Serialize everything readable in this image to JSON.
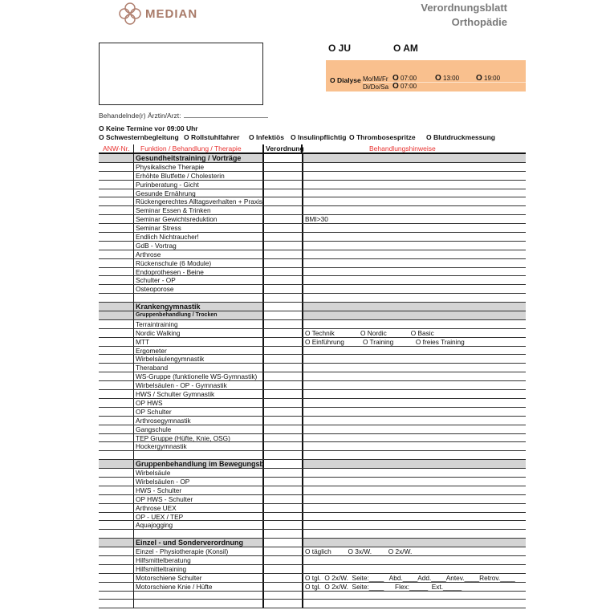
{
  "header": {
    "logo_text": "MEDIAN",
    "title_line1": "Verordnungsblatt",
    "title_line2": "Orthopädie"
  },
  "ward": {
    "ju": "O  JU",
    "am": "O  AM"
  },
  "dialyse": {
    "label": "O Dialyse",
    "days1": "Mo/Mi/Fr",
    "days2": "Di/Do/Sa",
    "t1": "07:00",
    "t2": "13:00",
    "t3": "19:00",
    "t4": "07:00",
    "circle": "O"
  },
  "doctor_label": "Behandelnde(r) Ärztin/Arzt:",
  "no_early": "O Keine Termine vor 09:00 Uhr",
  "flags": [
    "O Schwesternbegleitung",
    "O Rollstuhlfahrer",
    "O Infektiös",
    "O Insulinpflichtig",
    "O Thrombosespritze",
    "O Blutdruckmessung"
  ],
  "columns": {
    "anw": "ANW-Nr.",
    "funktion": "Funktion / Behandlung / Therapie",
    "verordnung": "Verordnung",
    "hinweise": "Behandlungshinweise",
    "header_color": "#e8312f"
  },
  "rows": [
    {
      "t": "sec",
      "label": "Gesundheitstraining / Vorträge"
    },
    {
      "t": "item",
      "label": "Physikalische Therapie"
    },
    {
      "t": "item",
      "label": "Erhöhte Blutfette / Cholesterin"
    },
    {
      "t": "item",
      "label": "Purinberatung - Gicht"
    },
    {
      "t": "item",
      "label": "Gesunde Ernährung"
    },
    {
      "t": "item",
      "label": "Rückengerechtes Alltagsverhalten + Praxis"
    },
    {
      "t": "item",
      "label": "Seminar Essen & Trinken"
    },
    {
      "t": "item",
      "label": "Seminar Gewichtsreduktion",
      "note": "BMI>30"
    },
    {
      "t": "item",
      "label": "Seminar Stress"
    },
    {
      "t": "item",
      "label": "Endlich Nichtraucher!"
    },
    {
      "t": "item",
      "label": "GdB - Vortrag"
    },
    {
      "t": "item",
      "label": "Arthrose"
    },
    {
      "t": "item",
      "label": "Rückenschule (6 Module)"
    },
    {
      "t": "item",
      "label": "Endoprothesen - Beine"
    },
    {
      "t": "item",
      "label": "Schulter - OP"
    },
    {
      "t": "item",
      "label": "Osteoporose"
    },
    {
      "t": "blank",
      "label": ""
    },
    {
      "t": "sec",
      "label": "Krankengymnastik"
    },
    {
      "t": "sub",
      "label": "Gruppenbehandlung / Trocken"
    },
    {
      "t": "item",
      "label": "Terraintraining"
    },
    {
      "t": "item",
      "label": "Nordic Walking",
      "note": "O Technik              O Nordic             O Basic"
    },
    {
      "t": "item",
      "label": "MTT",
      "note": "O Einführung          O Training            O freies Training"
    },
    {
      "t": "item",
      "label": "Ergometer"
    },
    {
      "t": "item",
      "label": "Wirbelsäulengymnastik"
    },
    {
      "t": "item",
      "label": "Theraband"
    },
    {
      "t": "item",
      "label": "WS-Gruppe (funktionelle WS-Gymnastik)"
    },
    {
      "t": "item",
      "label": "Wirbelsäulen - OP - Gymnastik"
    },
    {
      "t": "item",
      "label": "HWS / Schulter Gymnastik"
    },
    {
      "t": "item",
      "label": "OP HWS"
    },
    {
      "t": "item",
      "label": "OP Schulter"
    },
    {
      "t": "item",
      "label": "Arthrosegymnastik"
    },
    {
      "t": "item",
      "label": "Gangschule"
    },
    {
      "t": "item",
      "label": "TEP Gruppe (Hüfte, Knie, OSG)"
    },
    {
      "t": "item",
      "label": "Hockergymnastik"
    },
    {
      "t": "blank",
      "label": ""
    },
    {
      "t": "sec",
      "label": "Gruppenbehandlung im Bewegungsbad"
    },
    {
      "t": "item",
      "label": "Wirbelsäule"
    },
    {
      "t": "item",
      "label": "Wirbelsäulen - OP"
    },
    {
      "t": "item",
      "label": "HWS - Schulter"
    },
    {
      "t": "item",
      "label": "OP HWS - Schulter"
    },
    {
      "t": "item",
      "label": "Arthrose UEX"
    },
    {
      "t": "item",
      "label": "OP - UEX / TEP"
    },
    {
      "t": "item",
      "label": "Aquajogging"
    },
    {
      "t": "blank",
      "label": ""
    },
    {
      "t": "sec",
      "label": "Einzel - und Sonderverordnung"
    },
    {
      "t": "item",
      "label": "Einzel - Physiotherapie (Konsil)",
      "note": "O täglich         O 3x/W.         O 2x/W."
    },
    {
      "t": "item",
      "label": "Hilfsmittelberatung"
    },
    {
      "t": "item",
      "label": "Hilfsmitteltraining"
    },
    {
      "t": "item",
      "label": "Motorschiene Schulter",
      "note": "O tgl.  O 2x/W.  Seite:____   Abd.____Add.____Antev.____Retrov.____"
    },
    {
      "t": "item",
      "label": "Motorschiene Knie / Hüfte",
      "note": "O tgl.  O 2x/W.  Seite:____      Flex:_____  Ext._____"
    },
    {
      "t": "blank",
      "label": ""
    },
    {
      "t": "blank",
      "label": ""
    }
  ]
}
